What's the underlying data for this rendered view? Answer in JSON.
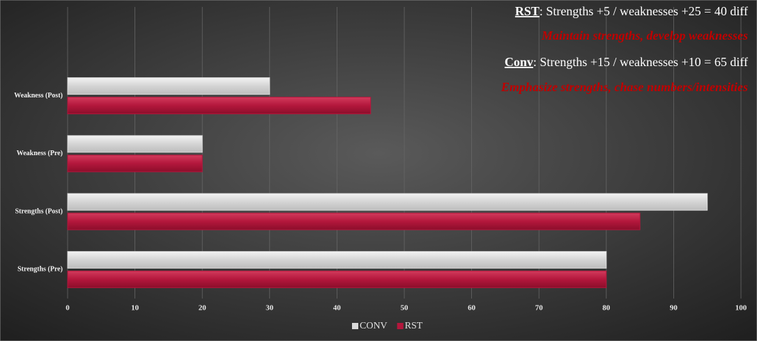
{
  "chart_data": {
    "type": "hbar",
    "categories": [
      "Strengths (Pre)",
      "Strengths (Post)",
      "Weakness (Pre)",
      "Weakness (Post)"
    ],
    "series": [
      {
        "name": "CONV",
        "color": "#d9d9d9",
        "values": [
          80,
          95,
          20,
          30
        ]
      },
      {
        "name": "RST",
        "color": "#b3173c",
        "values": [
          80,
          85,
          20,
          45
        ]
      }
    ],
    "xlim": [
      0,
      100
    ],
    "xticks": [
      0,
      10,
      20,
      30,
      40,
      50,
      60,
      70,
      80,
      90,
      100
    ],
    "grid": true,
    "legend": "bottom",
    "annotations": [
      {
        "label": "RST",
        "text": ": Strengths +5 / weaknesses +25 = 40 diff",
        "color": "#ffffff",
        "italic": false
      },
      {
        "text": "Maintain strengths, develop weaknesses",
        "color": "#c00000",
        "italic": true
      },
      {
        "label": "Conv",
        "text": ": Strengths +15 / weaknesses +10 = 65 diff",
        "color": "#ffffff",
        "italic": false
      },
      {
        "text": "Emphasize strengths, chase numbers/intensities",
        "color": "#c00000",
        "italic": true
      }
    ]
  }
}
